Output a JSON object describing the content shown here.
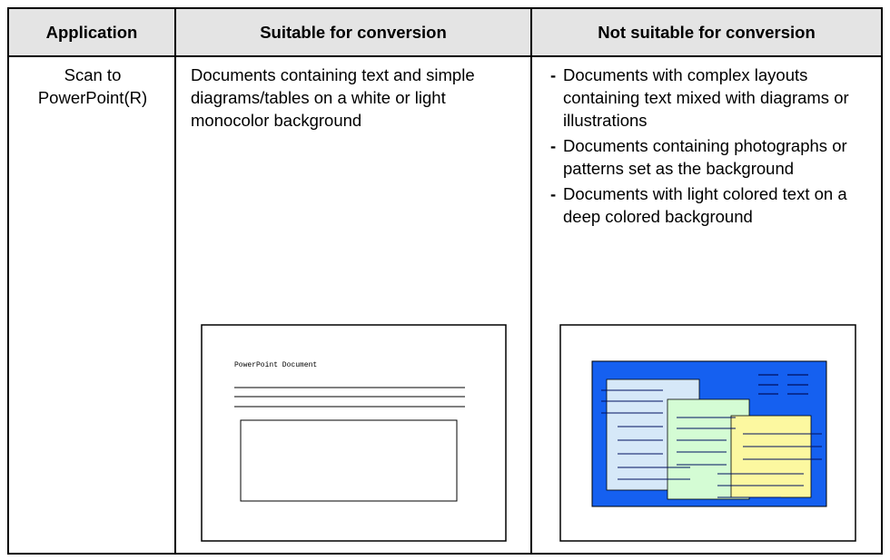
{
  "table": {
    "header": [
      "Application",
      "Suitable for conversion",
      "Not suitable for conversion"
    ],
    "rows": [
      {
        "application": "Scan to PowerPoint(R)",
        "suitable": "Documents containing text and simple diagrams/tables on a white or light monocolor background",
        "bullet": "-",
        "not_suitable": [
          "Documents with complex layouts containing text mixed with diagrams or illustrations",
          "Documents containing photographs or patterns set as the background",
          "Documents with light colored text on a deep colored background"
        ],
        "illustration_label": "PowerPoint Document"
      }
    ]
  }
}
